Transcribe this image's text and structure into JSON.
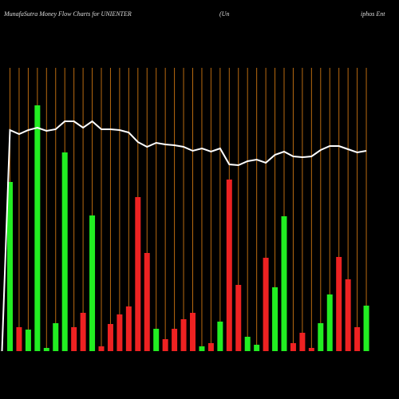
{
  "chart_data": {
    "type": "bar",
    "title": "MunafaSutra  Money Flow  Charts for UNIENTER",
    "subtitle": [
      "(Un",
      "iphos Ent"
    ],
    "values": [
      212,
      30,
      27,
      308,
      4,
      35,
      249,
      30,
      48,
      170,
      6,
      34,
      46,
      56,
      193,
      123,
      28,
      15,
      28,
      40,
      48,
      6,
      10,
      37,
      215,
      83,
      18,
      8,
      117,
      80,
      169,
      10,
      23,
      4,
      35,
      71,
      118,
      90,
      30,
      57
    ],
    "colors": [
      "#22ee22",
      "#ee2222",
      "#22ee22",
      "#22ee22",
      "#22ee22",
      "#22ee22",
      "#22ee22",
      "#ee2222",
      "#ee2222",
      "#22ee22",
      "#ee2222",
      "#ee2222",
      "#ee2222",
      "#ee2222",
      "#ee2222",
      "#ee2222",
      "#22ee22",
      "#ee2222",
      "#ee2222",
      "#ee2222",
      "#ee2222",
      "#22ee22",
      "#ee2222",
      "#22ee22",
      "#ee2222",
      "#ee2222",
      "#22ee22",
      "#22ee22",
      "#ee2222",
      "#22ee22",
      "#22ee22",
      "#ee2222",
      "#ee2222",
      "#ee2222",
      "#22ee22",
      "#22ee22",
      "#ee2222",
      "#ee2222",
      "#ee2222",
      "#22ee22"
    ],
    "line": {
      "color": "#ffffff",
      "values": [
        277,
        272,
        277,
        280,
        276,
        278,
        288,
        288,
        280,
        288,
        278,
        278,
        277,
        274,
        262,
        256,
        261,
        259,
        258,
        256,
        251,
        254,
        250,
        254,
        234,
        233,
        238,
        240,
        236,
        246,
        250,
        244,
        243,
        244,
        252,
        257,
        257,
        253,
        249,
        251
      ]
    },
    "ylim": [
      0,
      355
    ],
    "grid_color": "#b86a10"
  }
}
